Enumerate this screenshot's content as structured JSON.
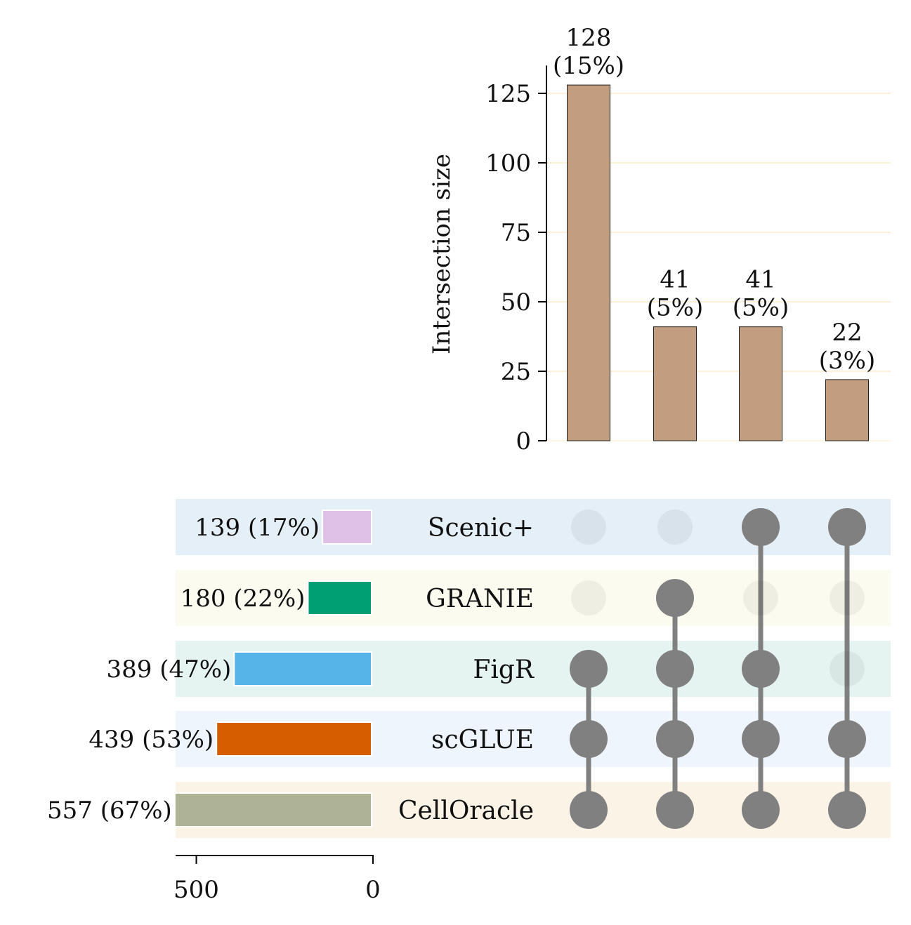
{
  "chart_data": {
    "type": "upset",
    "intersections": {
      "ylabel": "Intersection size",
      "ylim": [
        0,
        135
      ],
      "yticks": [
        0,
        25,
        50,
        75,
        100,
        125
      ],
      "bar_color": "#c29d7f",
      "values": [
        128,
        41,
        41,
        22
      ],
      "labels": [
        "128\n(15%)",
        "41\n(5%)",
        "41\n(5%)",
        "22\n(3%)"
      ],
      "members": [
        [
          "FigR",
          "scGLUE",
          "CellOracle"
        ],
        [
          "GRANIE",
          "FigR",
          "scGLUE",
          "CellOracle"
        ],
        [
          "Scenic+",
          "FigR",
          "scGLUE",
          "CellOracle"
        ],
        [
          "Scenic+",
          "scGLUE",
          "CellOracle"
        ]
      ],
      "grid": true
    },
    "sets": [
      {
        "name": "Scenic+",
        "size": 139,
        "label": "139 (17%)",
        "color": "#dfc1e6",
        "row_color": "#e4eff7"
      },
      {
        "name": "GRANIE",
        "size": 180,
        "label": "180 (22%)",
        "color": "#009e73",
        "row_color": "#fbfbef"
      },
      {
        "name": "FigR",
        "size": 389,
        "label": "389 (47%)",
        "color": "#56b4e9",
        "row_color": "#e5f4f1"
      },
      {
        "name": "scGLUE",
        "size": 439,
        "label": "439 (53%)",
        "color": "#d55e00",
        "row_color": "#eef5fd"
      },
      {
        "name": "CellOracle",
        "size": 557,
        "label": "557 (67%)",
        "color": "#afb395",
        "row_color": "#fbf3e6"
      }
    ],
    "set_size_axis": {
      "ticks": [
        500,
        0
      ],
      "xlim": [
        600,
        0
      ]
    },
    "dot_color": "#808080"
  }
}
